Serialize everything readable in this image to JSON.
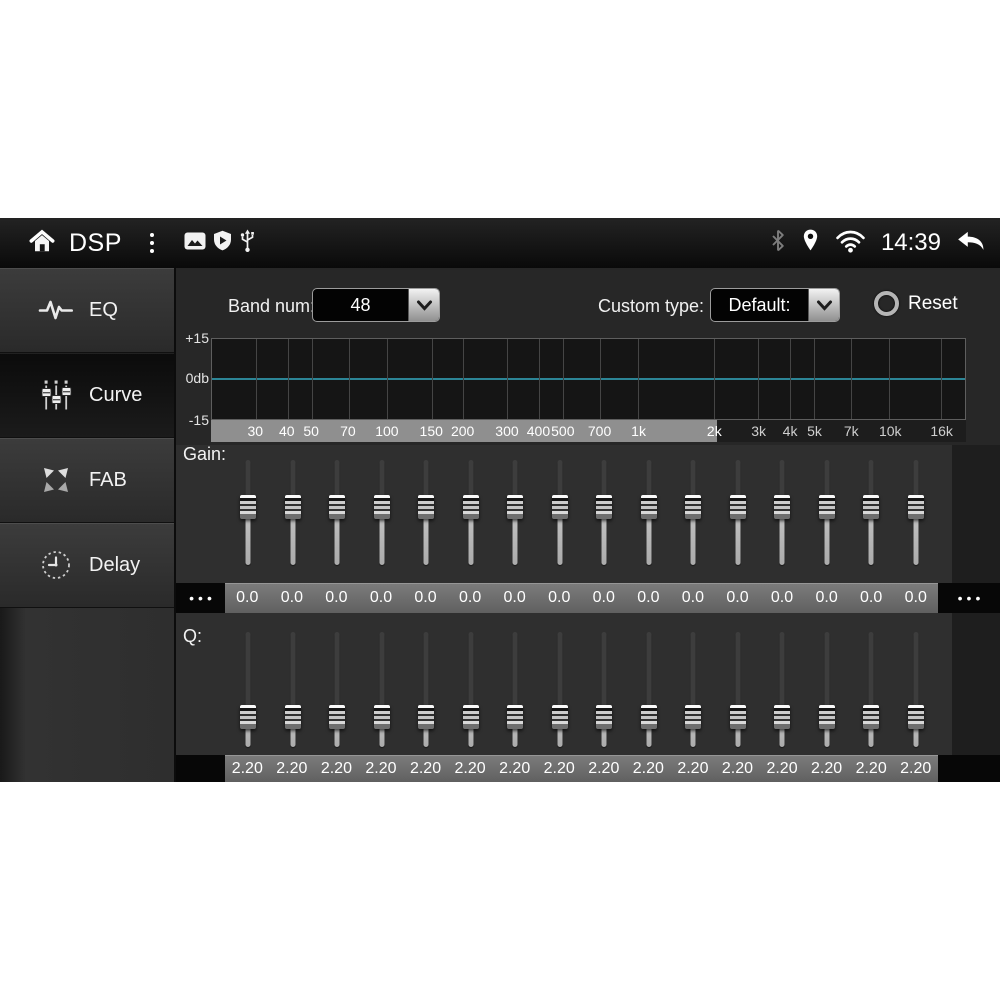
{
  "status_bar": {
    "title": "DSP",
    "time": "14:39",
    "icons": {
      "home": "home-icon",
      "overflow": "overflow-menu-icon",
      "gallery": "gallery-icon",
      "shield": "shield-icon",
      "usb": "usb-icon",
      "bluetooth": "bluetooth-icon",
      "location": "location-icon",
      "wifi": "wifi-icon",
      "back": "back-icon"
    }
  },
  "sidebar": {
    "items": [
      {
        "id": "eq",
        "label": "EQ",
        "icon": "waveform-icon",
        "selected": false
      },
      {
        "id": "curve",
        "label": "Curve",
        "icon": "sliders-icon",
        "selected": true
      },
      {
        "id": "fab",
        "label": "FAB",
        "icon": "fab-arrows-icon",
        "selected": false
      },
      {
        "id": "delay",
        "label": "Delay",
        "icon": "clock-icon",
        "selected": false
      }
    ]
  },
  "controls": {
    "band_num_label": "Band num:",
    "band_num_value": "48",
    "custom_type_label": "Custom type:",
    "custom_type_value": "Default:",
    "reset_label": "Reset"
  },
  "eq_graph": {
    "y_axis_labels": [
      "+15",
      "0db",
      "-15"
    ],
    "freq_ticks": [
      {
        "label": "30",
        "hz": 30
      },
      {
        "label": "40",
        "hz": 40
      },
      {
        "label": "50",
        "hz": 50
      },
      {
        "label": "70",
        "hz": 70
      },
      {
        "label": "100",
        "hz": 100
      },
      {
        "label": "150",
        "hz": 150
      },
      {
        "label": "200",
        "hz": 200
      },
      {
        "label": "300",
        "hz": 300
      },
      {
        "label": "400",
        "hz": 400
      },
      {
        "label": "500",
        "hz": 500
      },
      {
        "label": "700",
        "hz": 700
      },
      {
        "label": "1k",
        "hz": 1000
      },
      {
        "label": "2k",
        "hz": 2000
      },
      {
        "label": "3k",
        "hz": 3000
      },
      {
        "label": "4k",
        "hz": 4000
      },
      {
        "label": "5k",
        "hz": 5000
      },
      {
        "label": "7k",
        "hz": 7000
      },
      {
        "label": "10k",
        "hz": 10000
      },
      {
        "label": "16k",
        "hz": 16000
      }
    ],
    "freq_axis_min_hz": 20,
    "freq_axis_max_hz": 20000,
    "visible_window_pct": 67,
    "zero_line_color": "#2c8596",
    "curve_db": 0
  },
  "gain": {
    "label": "Gain:",
    "values": [
      "0.0",
      "0.0",
      "0.0",
      "0.0",
      "0.0",
      "0.0",
      "0.0",
      "0.0",
      "0.0",
      "0.0",
      "0.0",
      "0.0",
      "0.0",
      "0.0",
      "0.0",
      "0.0"
    ],
    "thumb_pos_pct": 45,
    "more_left": "•••",
    "more_right": "•••"
  },
  "q": {
    "label": "Q:",
    "values": [
      "2.20",
      "2.20",
      "2.20",
      "2.20",
      "2.20",
      "2.20",
      "2.20",
      "2.20",
      "2.20",
      "2.20",
      "2.20",
      "2.20",
      "2.20",
      "2.20",
      "2.20",
      "2.20"
    ],
    "thumb_pos_pct": 74
  }
}
